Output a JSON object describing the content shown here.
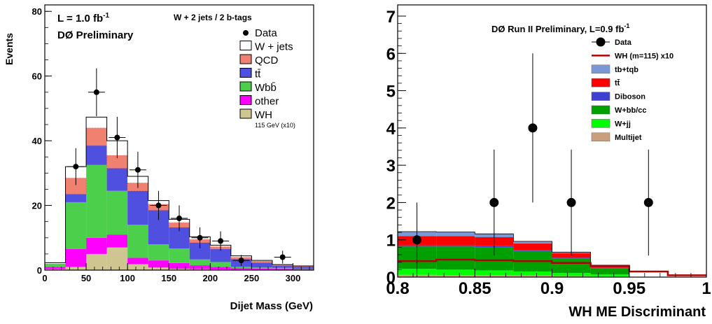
{
  "chart_data": [
    {
      "type": "bar",
      "stacked": true,
      "xlabel": "Dijet Mass (GeV)",
      "ylabel": "Events",
      "xlim": [
        0,
        325
      ],
      "ylim": [
        0,
        82
      ],
      "x_ticks": [
        "0",
        "50",
        "100",
        "150",
        "200",
        "250",
        "300"
      ],
      "y_ticks": [
        "0",
        "20",
        "40",
        "60",
        "80"
      ],
      "bin_edges": [
        0,
        25,
        50,
        75,
        100,
        125,
        150,
        175,
        200,
        225,
        250,
        275,
        300,
        325
      ],
      "annotations": {
        "lumi_prefix": "L = 1.0 fb",
        "lumi_sup": "-1",
        "prelim": "DØ Preliminary",
        "selection": "W + 2 jets /  2 b-tags"
      },
      "series": [
        {
          "name": "WH",
          "color": "#cfc590",
          "values": [
            0.3,
            1.0,
            5.0,
            7.0,
            1.8,
            0.8,
            0.4,
            0.3,
            0.2,
            0.1,
            0.1,
            0.1,
            0.1
          ]
        },
        {
          "name": "other",
          "color": "#ff00ff",
          "values": [
            0.7,
            5.5,
            5.0,
            4.0,
            2.0,
            2.2,
            1.8,
            1.2,
            0.8,
            0.5,
            0.4,
            0.3,
            0.2
          ]
        },
        {
          "name": "Wbb̄",
          "color": "#4cd04c",
          "values": [
            1.0,
            14.5,
            22.5,
            13.5,
            10.2,
            5.0,
            4.5,
            1.8,
            1.5,
            0.4,
            0.3,
            0.3,
            0.1
          ]
        },
        {
          "name": "tt̄",
          "color": "#5050e0",
          "values": [
            0.0,
            2.5,
            6.0,
            7.0,
            10.5,
            10.5,
            6.5,
            5.2,
            4.0,
            2.4,
            1.5,
            0.6,
            0.6
          ]
        },
        {
          "name": "QCD",
          "color": "#f08070",
          "values": [
            0.0,
            5.0,
            5.5,
            4.0,
            2.5,
            1.9,
            1.5,
            1.0,
            0.8,
            0.6,
            0.5,
            0.3,
            0.2
          ]
        },
        {
          "name": "W + jets",
          "color": "#ffffff",
          "values": [
            0.3,
            3.5,
            3.3,
            4.5,
            2.0,
            1.1,
            1.0,
            0.8,
            0.4,
            0.4,
            0.2,
            0.1,
            0.1
          ]
        }
      ],
      "data_points": [
        {
          "x": 37.5,
          "y": 32,
          "err": 5.7
        },
        {
          "x": 62.5,
          "y": 55,
          "err": 7.4
        },
        {
          "x": 87.5,
          "y": 41,
          "err": 6.4
        },
        {
          "x": 112.5,
          "y": 31,
          "err": 5.6
        },
        {
          "x": 137.5,
          "y": 20,
          "err": 4.5
        },
        {
          "x": 162.5,
          "y": 16,
          "err": 4.0
        },
        {
          "x": 187.5,
          "y": 10,
          "err": 3.2
        },
        {
          "x": 212.5,
          "y": 9,
          "err": 3.0
        },
        {
          "x": 237.5,
          "y": 3,
          "err": 1.7
        },
        {
          "x": 287.5,
          "y": 4,
          "err": 2.0
        }
      ],
      "legend": [
        "Data",
        "W + jets",
        "QCD",
        "tt̄",
        "Wbb̄",
        "other",
        "WH"
      ],
      "legend_wh_note": "115 GeV (x10)"
    },
    {
      "type": "bar",
      "stacked": true,
      "xlabel": "WH ME Discriminant",
      "ylabel": "",
      "xlim": [
        0.8,
        1.0
      ],
      "ylim": [
        0,
        7.3
      ],
      "x_ticks": [
        "0.8",
        "0.85",
        "0.9",
        "0.95",
        "1"
      ],
      "y_ticks": [
        "0",
        "1",
        "2",
        "3",
        "4",
        "5",
        "6",
        "7"
      ],
      "bin_edges": [
        0.8,
        0.825,
        0.85,
        0.875,
        0.9,
        0.925,
        0.95,
        0.975,
        1.0
      ],
      "annotations": {
        "title_prefix": "DØ Run II Preliminary, L=0.9 fb",
        "title_sup": "-1"
      },
      "series": [
        {
          "name": "Multijet",
          "color": "#c8a080",
          "values": [
            0.06,
            0.05,
            0.05,
            0.04,
            0.03,
            0.02,
            0.0,
            0.0
          ]
        },
        {
          "name": "W+jj",
          "color": "#00ff00",
          "values": [
            0.16,
            0.15,
            0.13,
            0.11,
            0.08,
            0.05,
            0.0,
            0.0
          ]
        },
        {
          "name": "W+bb/cc",
          "color": "#00a000",
          "values": [
            0.6,
            0.62,
            0.62,
            0.55,
            0.39,
            0.17,
            0.0,
            0.0
          ]
        },
        {
          "name": "Diboson",
          "color": "#4040d0",
          "values": [
            0.03,
            0.03,
            0.03,
            0.03,
            0.02,
            0.01,
            0.0,
            0.0
          ]
        },
        {
          "name": "tt̄",
          "color": "#ff0000",
          "values": [
            0.25,
            0.25,
            0.24,
            0.17,
            0.12,
            0.05,
            0.0,
            0.0
          ]
        },
        {
          "name": "tb+tqb",
          "color": "#7b98d6",
          "values": [
            0.12,
            0.11,
            0.09,
            0.06,
            0.03,
            0.02,
            0.0,
            0.0
          ]
        }
      ],
      "wh_line": {
        "name": "WH (m=115) x10",
        "color": "#b00000",
        "values": [
          0.43,
          0.47,
          0.45,
          0.43,
          0.38,
          0.3,
          0.15,
          0.05
        ]
      },
      "data_points": [
        {
          "x": 0.8125,
          "y": 1,
          "err_up": 1.0,
          "err_dn": 1.0
        },
        {
          "x": 0.8625,
          "y": 2,
          "err_up": 1.42,
          "err_dn": 1.42
        },
        {
          "x": 0.8875,
          "y": 4,
          "err_up": 2.0,
          "err_dn": 2.0
        },
        {
          "x": 0.9125,
          "y": 2,
          "err_up": 1.42,
          "err_dn": 1.42
        },
        {
          "x": 0.9625,
          "y": 2,
          "err_up": 1.42,
          "err_dn": 1.42
        }
      ],
      "legend": [
        "Data",
        "WH (m=115) x10",
        "tb+tqb",
        "tt̄",
        "Diboson",
        "W+bb/cc",
        "W+jj",
        "Multijet"
      ]
    }
  ]
}
